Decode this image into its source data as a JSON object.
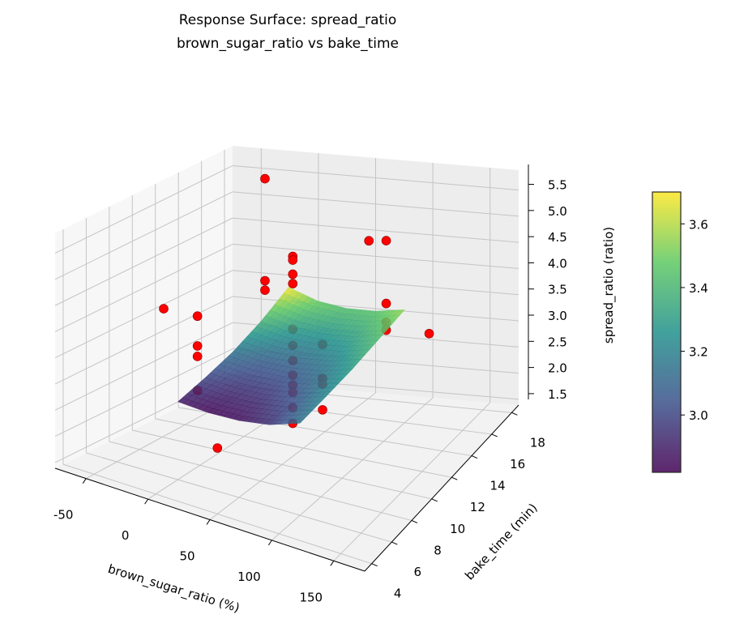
{
  "chart_data": {
    "type": "surface3d",
    "title": "Response Surface: spread_ratio",
    "subtitle": "brown_sugar_ratio vs bake_time",
    "xlabel": "brown_sugar_ratio (%)",
    "ylabel": "bake_time (min)",
    "zlabel": "spread_ratio (ratio)",
    "xlim": [
      -75,
      175
    ],
    "ylim": [
      3.3,
      18.7
    ],
    "zlim": [
      1.39,
      5.88
    ],
    "xticks": [
      -50,
      0,
      50,
      100,
      150
    ],
    "yticks": [
      4,
      6,
      8,
      10,
      12,
      14,
      16,
      18
    ],
    "zticks": [
      "1.5",
      "2.0",
      "2.5",
      "3.0",
      "3.5",
      "4.0",
      "4.5",
      "5.0",
      "5.5"
    ],
    "grid": true,
    "colorbar": {
      "colormap": "viridis",
      "range": [
        2.82,
        3.7
      ],
      "ticks": [
        "3.0",
        "3.2",
        "3.4",
        "3.6"
      ]
    },
    "surface": {
      "x": [
        0,
        25,
        50,
        75,
        100
      ],
      "y": [
        6,
        8.5,
        11,
        13.5,
        16
      ],
      "z": [
        [
          2.88,
          2.84,
          2.86,
          2.95,
          3.15
        ],
        [
          3.0,
          2.95,
          2.96,
          3.05,
          3.22
        ],
        [
          3.15,
          3.08,
          3.08,
          3.15,
          3.3
        ],
        [
          3.38,
          3.27,
          3.24,
          3.29,
          3.42
        ],
        [
          3.69,
          3.5,
          3.43,
          3.45,
          3.55
        ]
      ]
    },
    "points": {
      "color": "#ff0000",
      "x": [
        50,
        50,
        50,
        50,
        50,
        50,
        50,
        50,
        50,
        50,
        50,
        50,
        -30,
        -30,
        -30,
        -30,
        -30,
        50,
        -30,
        -30,
        -30,
        75,
        75,
        75,
        75,
        75,
        75,
        75,
        75,
        60,
        130
      ],
      "y": [
        11,
        11,
        11,
        11,
        11,
        11,
        11,
        11,
        11,
        11,
        11,
        11,
        11,
        11,
        11,
        11,
        8,
        4,
        17,
        17,
        17,
        11,
        11,
        11,
        11,
        17,
        17,
        17,
        17,
        17,
        15
      ],
      "z": [
        5.21,
        5.14,
        4.87,
        4.69,
        3.82,
        3.51,
        3.22,
        2.94,
        2.75,
        2.61,
        2.32,
        2.02,
        3.68,
        3.11,
        2.91,
        2.26,
        4.2,
        2.65,
        5.55,
        3.6,
        3.42,
        3.65,
        3.0,
        2.89,
        2.4,
        4.63,
        3.43,
        3.07,
        2.92,
        4.59,
        3.37
      ]
    }
  }
}
